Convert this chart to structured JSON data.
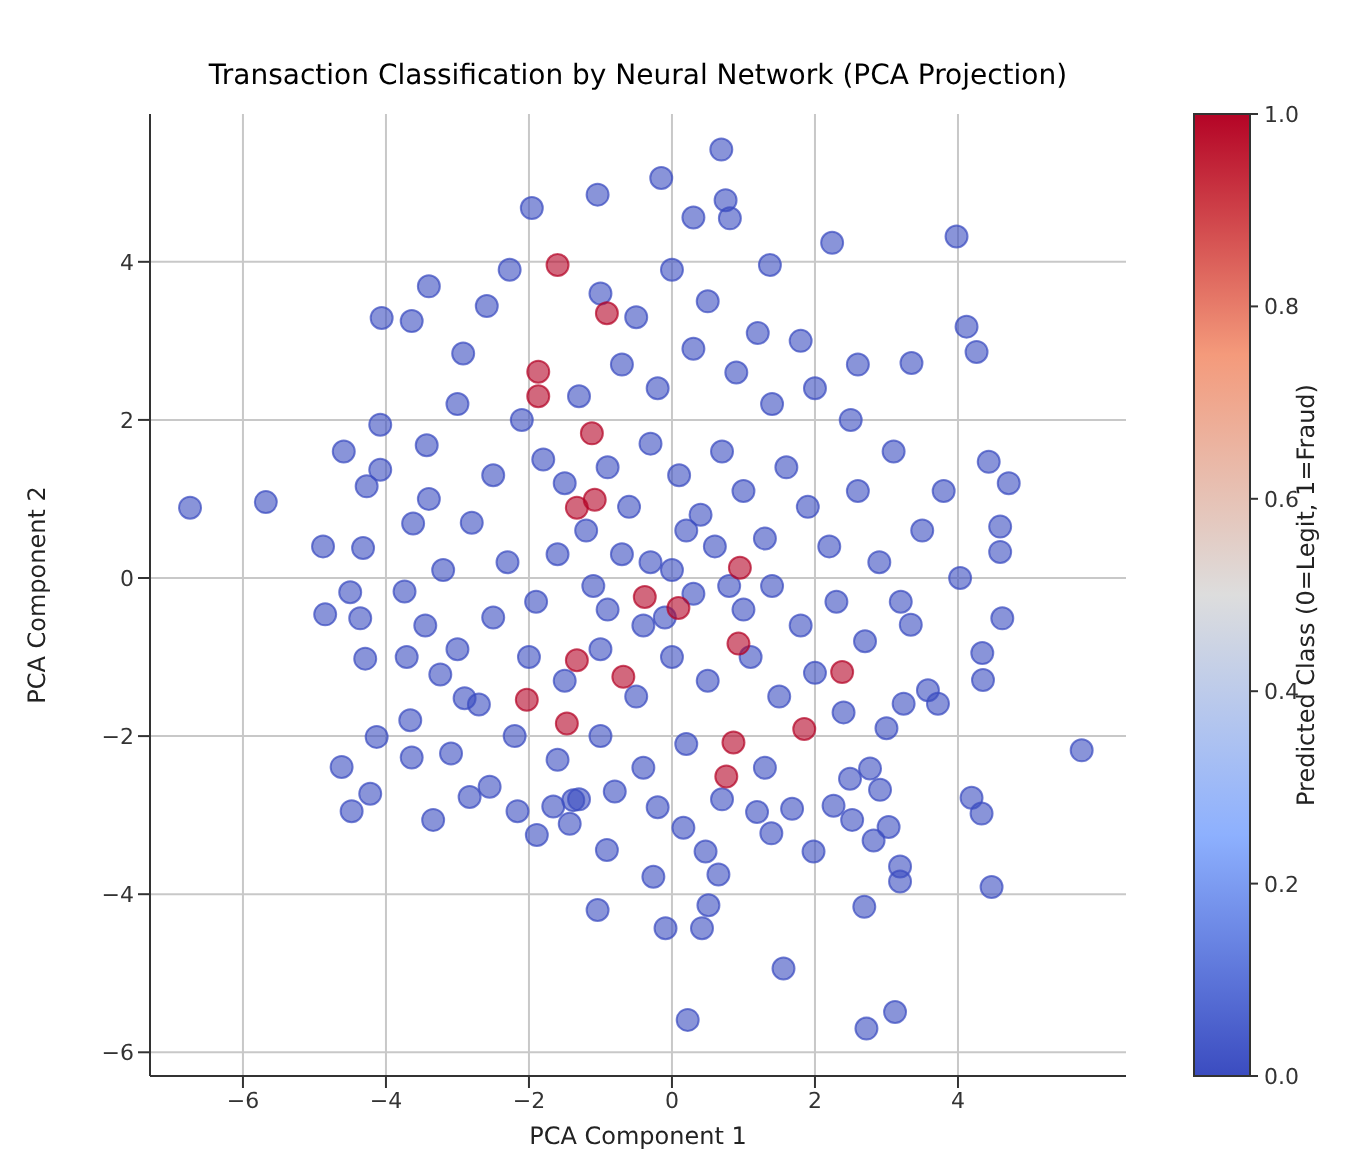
{
  "chart_data": {
    "type": "scatter",
    "title": "Transaction Classification by Neural Network (PCA Projection)",
    "xlabel": "PCA Component 1",
    "ylabel": "PCA Component 2",
    "clabel": "Predicted Class (0=Legit, 1=Fraud)",
    "x": [
      -6.74,
      -5.68,
      0.69,
      -1.04,
      -1.96,
      -0.15,
      0.3,
      0.75,
      0.81,
      2.24,
      3.98,
      1.37,
      4.12,
      4.26,
      3.35,
      4.43,
      4.71,
      4.59,
      4.59,
      4.03,
      -3.4,
      -4.06,
      -3.64,
      -4.59,
      -4.08,
      -4.08,
      -4.27,
      -4.88,
      -4.32,
      -3.62,
      -3.43,
      -2.92,
      -2.59,
      -2.27,
      -4.85,
      -4.5,
      -4.36,
      -4.29,
      -3.74,
      -3.45,
      -3.71,
      -3.24,
      -3.66,
      -4.13,
      -4.62,
      -4.22,
      -4.48,
      -3.64,
      -3.34,
      -3.09,
      -2.83,
      -2.55,
      -2.16,
      -1.89,
      -1.66,
      -1.43,
      -0.91,
      -1.04,
      -1.38,
      -2.9,
      4.62,
      4.34,
      4.35,
      3.34,
      3.58,
      3.72,
      3.24,
      4.19,
      4.33,
      4.47,
      3.19,
      3.19,
      2.69,
      3.12,
      2.72,
      1.56,
      0.22,
      -0.09,
      0.42,
      0.51,
      -0.26,
      0.65,
      0.47,
      1.98,
      3.03,
      2.82,
      2.52,
      2.77,
      2.91,
      2.26,
      2.49,
      1.19,
      0.16,
      1.68,
      1.39,
      5.73,
      -1.8,
      -1.5,
      -1.2,
      -0.9,
      -0.6,
      -0.3,
      0.1,
      0.4,
      0.7,
      1.0,
      1.3,
      1.6,
      1.9,
      2.2,
      2.6,
      2.9,
      3.1,
      2.5,
      2.0,
      1.4,
      0.9,
      0.3,
      -0.2,
      -0.7,
      -1.3,
      -2.1,
      -2.5,
      -2.8,
      -2.3,
      -1.9,
      -1.6,
      -1.1,
      -0.7,
      -0.4,
      0.0,
      0.3,
      0.6,
      1.0,
      1.4,
      1.8,
      2.3,
      2.7,
      3.2,
      2.0,
      1.5,
      1.1,
      0.5,
      0.0,
      -0.5,
      -1.0,
      -1.5,
      -2.0,
      -2.5,
      -2.7,
      -2.2,
      -1.6,
      -1.0,
      -0.4,
      0.2,
      0.7,
      1.3,
      -0.2,
      -0.8,
      -1.3,
      2.4,
      3.0,
      3.5,
      3.8,
      -3.2,
      -3.0,
      -3.4,
      -3.0,
      -0.5,
      0.5,
      1.2,
      1.8,
      -1.0,
      0.0,
      2.6,
      -0.1,
      0.2,
      -0.3,
      0.8,
      -0.9,
      -1.6,
      -1.87,
      -1.87,
      -1.12,
      -0.91,
      -1.33,
      -1.08,
      -2.03,
      -1.33,
      -1.47,
      -0.68,
      -0.38,
      0.09,
      0.93,
      2.38,
      1.85,
      0.86,
      0.76,
      0.95
    ],
    "values": [
      0.89,
      0.96,
      5.42,
      4.85,
      4.68,
      5.06,
      4.56,
      4.78,
      4.55,
      4.24,
      4.32,
      3.96,
      3.18,
      2.86,
      2.72,
      1.47,
      1.2,
      0.65,
      0.33,
      0.0,
      3.69,
      3.29,
      3.25,
      1.6,
      1.94,
      1.37,
      1.16,
      0.4,
      0.38,
      0.69,
      1.68,
      2.84,
      3.44,
      3.9,
      -0.46,
      -0.18,
      -0.51,
      -1.02,
      -0.17,
      -0.6,
      -1.0,
      -1.22,
      -1.8,
      -2.01,
      -2.39,
      -2.73,
      -2.95,
      -2.27,
      -3.06,
      -2.22,
      -2.77,
      -2.64,
      -2.95,
      -3.25,
      -2.89,
      -3.11,
      -3.44,
      -4.2,
      -2.81,
      -1.52,
      -0.51,
      -0.95,
      -1.29,
      -0.59,
      -1.42,
      -1.59,
      -1.59,
      -2.78,
      -2.98,
      -3.91,
      -3.65,
      -3.84,
      -4.16,
      -5.49,
      -5.7,
      -4.94,
      -5.59,
      -4.43,
      -4.43,
      -4.14,
      -3.78,
      -3.75,
      -3.46,
      -3.46,
      -3.15,
      -3.32,
      -3.06,
      -2.41,
      -2.68,
      -2.88,
      -2.54,
      -2.96,
      -3.16,
      -2.92,
      -3.23,
      -2.18,
      1.5,
      1.2,
      0.6,
      1.4,
      0.9,
      1.7,
      1.3,
      0.8,
      1.6,
      1.1,
      0.5,
      1.4,
      0.9,
      0.4,
      1.1,
      0.2,
      1.6,
      2.0,
      2.4,
      2.2,
      2.6,
      2.9,
      2.4,
      2.7,
      2.3,
      2.0,
      1.3,
      0.7,
      0.2,
      -0.3,
      0.3,
      -0.1,
      0.3,
      -0.6,
      0.1,
      -0.2,
      0.4,
      -0.4,
      -0.1,
      -0.6,
      -0.3,
      -0.8,
      -0.3,
      -1.2,
      -1.5,
      -1.0,
      -1.3,
      -1.0,
      -1.5,
      -0.9,
      -1.3,
      -1.0,
      -0.5,
      -1.6,
      -2.0,
      -2.3,
      -2.0,
      -2.4,
      -2.1,
      -2.8,
      -2.4,
      -2.9,
      -2.7,
      -2.8,
      -1.7,
      -1.9,
      0.6,
      1.1,
      0.1,
      -0.9,
      1.0,
      2.2,
      3.3,
      3.5,
      3.1,
      3.0,
      3.6,
      3.9,
      2.7,
      -0.5,
      0.6,
      0.2,
      -0.1,
      -0.4,
      3.96,
      2.61,
      2.3,
      1.83,
      3.35,
      0.89,
      0.99,
      -1.54,
      -1.04,
      -1.84,
      -1.25,
      -0.24,
      -0.38,
      -0.83,
      -1.19,
      -1.91,
      -2.08,
      -2.51,
      0.13
    ],
    "cvalues": [
      0,
      0,
      0,
      0,
      0,
      0,
      0,
      0,
      0,
      0,
      0,
      0,
      0,
      0,
      0,
      0,
      0,
      0,
      0,
      0,
      0,
      0,
      0,
      0,
      0,
      0,
      0,
      0,
      0,
      0,
      0,
      0,
      0,
      0,
      0,
      0,
      0,
      0,
      0,
      0,
      0,
      0,
      0,
      0,
      0,
      0,
      0,
      0,
      0,
      0,
      0,
      0,
      0,
      0,
      0,
      0,
      0,
      0,
      0,
      0,
      0,
      0,
      0,
      0,
      0,
      0,
      0,
      0,
      0,
      0,
      0,
      0,
      0,
      0,
      0,
      0,
      0,
      0,
      0,
      0,
      0,
      0,
      0,
      0,
      0,
      0,
      0,
      0,
      0,
      0,
      0,
      0,
      0,
      0,
      0,
      0,
      0,
      0,
      0,
      0,
      0,
      0,
      0,
      0,
      0,
      0,
      0,
      0,
      0,
      0,
      0,
      0,
      0,
      0,
      0,
      0,
      0,
      0,
      0,
      0,
      0,
      0,
      0,
      0,
      0,
      0,
      0,
      0,
      0,
      0,
      0,
      0,
      0,
      0,
      0,
      0,
      0,
      0,
      0,
      0,
      0,
      0,
      0,
      0,
      0,
      0,
      0,
      0,
      0,
      0,
      0,
      0,
      0,
      0,
      0,
      0,
      0,
      0,
      0,
      0,
      0,
      0,
      0,
      0,
      0,
      0,
      0,
      0,
      0,
      0,
      0,
      0,
      0,
      0,
      0,
      0,
      0,
      0,
      0,
      0,
      1,
      1,
      1,
      1,
      1,
      1,
      1,
      1,
      1,
      1,
      1,
      1,
      1,
      1,
      1,
      1,
      1,
      1,
      1
    ],
    "xlim": [
      -7.3,
      6.35
    ],
    "xticks": [
      {
        "value": -6,
        "label": "−6"
      },
      {
        "value": -4,
        "label": "−4"
      },
      {
        "value": -2,
        "label": "−2"
      },
      0,
      2,
      4
    ],
    "ylim": [
      -6.3,
      5.87
    ],
    "yticks": [
      {
        "value": -6,
        "label": "−6"
      },
      {
        "value": -4,
        "label": "−4"
      },
      {
        "value": -2,
        "label": "−2"
      },
      0,
      2,
      4
    ],
    "clim": [
      0,
      1
    ],
    "cticks": [
      {
        "value": 0,
        "label": "0.0"
      },
      {
        "value": 0.2,
        "label": "0.2"
      },
      {
        "value": 0.4,
        "label": "0.4"
      },
      {
        "value": 0.6,
        "label": "0.6"
      },
      {
        "value": 0.8,
        "label": "0.8"
      },
      {
        "value": 1,
        "label": "1.0"
      }
    ],
    "grid": true,
    "marker": "circle"
  }
}
